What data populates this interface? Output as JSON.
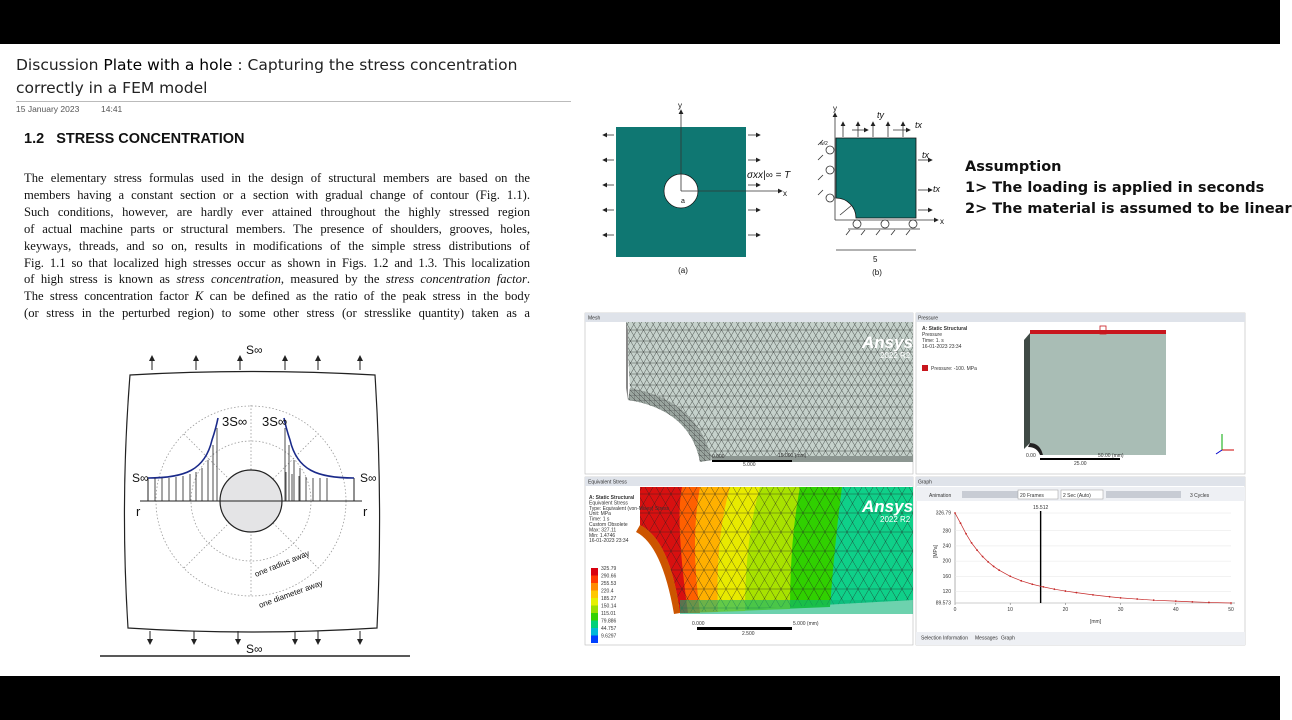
{
  "header": {
    "title_prefix": "Discussion",
    "title_bold": "Plate with a hole",
    "title_rest": ": Capturing the stress concentration",
    "title_line2": "correctly in a FEM model",
    "date": "15 January 2023",
    "time": "14:41"
  },
  "section": {
    "heading": "1.2   STRESS CONCENTRATION",
    "lines": [
      [
        "The elementary stress formulas used in the design of structural members are based on the"
      ],
      [
        "members having a constant section or a section with gradual change of contour (Fig. 1.1)."
      ],
      [
        "Such conditions, however, are hardly ever attained throughout the highly stressed region"
      ],
      [
        "of actual machine parts or structural members. The presence of shoulders, grooves, holes,"
      ],
      [
        "keyways, threads, and so on, results in modifications of the simple stress distributions of"
      ],
      [
        "Fig. 1.1 so that localized high stresses occur as shown in Figs. 1.2 and 1.3. This localization"
      ],
      [
        "of high stress is known as ",
        "stress concentration",
        ", measured by the ",
        "stress concentration factor",
        "."
      ],
      [
        "The stress concentration factor ",
        "K",
        " can be defined as the ratio of the peak stress in the body"
      ],
      [
        "(or stress in the perturbed region) to some other stress (or stresslike quantity) taken as a"
      ]
    ]
  },
  "figure_left": {
    "top": "S∞",
    "bottom": "S∞",
    "left": "S∞",
    "right": "S∞",
    "peak_left": "3S∞",
    "peak_right": "3S∞",
    "r_left": "r",
    "r_right": "r",
    "radius": "one radius away",
    "diameter": "one diameter away"
  },
  "figure_right": {
    "label_a": "(a)",
    "label_b": "(b)",
    "y_a": "y",
    "x_a": "x",
    "a": "a",
    "load": "σxx|∞ = T",
    "y_b": "y",
    "x_b": "x",
    "ty": "ty",
    "tx1": "tx",
    "tx2": "tx",
    "tx3": "tx",
    "width": "5",
    "wh": "w/2"
  },
  "assumption": {
    "title": "Assumption",
    "items": [
      "1> The loading is applied in seconds",
      "2> The material is assumed to be linear"
    ]
  },
  "mesh": {
    "tab": "Mesh",
    "brand": "Ansys",
    "version": "2022 R2",
    "scale": [
      "0.000",
      "5.000",
      "10.000 (mm)"
    ]
  },
  "pressure": {
    "tab": "Pressure",
    "info": [
      "A: Static Structural",
      "Pressure",
      "Time: 1. s",
      "16-01-2023 23:34"
    ],
    "legend": "Pressure: -100. MPa",
    "scale": [
      "0.00",
      "50.00 (mm)",
      "25.00"
    ]
  },
  "stress": {
    "tab": "Equivalent Stress",
    "brand": "Ansys",
    "version": "2022 R2",
    "info": [
      "A: Static Structural",
      "Equivalent Stress",
      "Type: Equivalent (von-Mises) Stress",
      "Unit: MPa",
      "Time: 1 s",
      "Custom Obsolete",
      "Max: 327.11",
      "Min: 1.4746",
      "16-01-2023 23:34"
    ],
    "legend": [
      "325.79",
      "290.66",
      "255.53",
      "220.4",
      "185.27",
      "150.14",
      "115.01",
      "79.886",
      "44.757",
      "9.6297"
    ],
    "legend_colors": [
      "#d8000e",
      "#ff3a00",
      "#ff8a00",
      "#ffc800",
      "#e6f000",
      "#9be000",
      "#35d200",
      "#00d07a",
      "#00b8d8",
      "#0040ff"
    ],
    "scale": [
      "0.000",
      "5.000 (mm)",
      "2.500"
    ]
  },
  "graph": {
    "tab": "Graph",
    "animation": "Animation",
    "frames": "20 Frames",
    "duration": "2 Sec (Auto)",
    "cycles": "3 Cycles",
    "marker": "15.512",
    "y_label": "[MPa]",
    "x_label": "[mm]",
    "xlim": [
      0,
      50
    ],
    "ylim": [
      89.573,
      326.79
    ],
    "xticks": [
      0,
      10,
      20,
      30,
      40,
      50
    ],
    "yticks": [
      326.79,
      280,
      240,
      200,
      160,
      120,
      89.573
    ],
    "cursor": 15.512,
    "x": [
      0,
      1,
      2,
      3,
      4,
      5,
      6,
      7,
      8,
      10,
      12,
      14,
      16,
      18,
      20,
      22,
      25,
      28,
      30,
      33,
      36,
      40,
      43,
      46,
      50
    ],
    "y": [
      326.79,
      300,
      272,
      248,
      229,
      212,
      198,
      186,
      176,
      160,
      148,
      139,
      132,
      126,
      121,
      117,
      111,
      106,
      103,
      100,
      97,
      94.5,
      92.5,
      91,
      89.573
    ],
    "tabs": [
      "Selection Information",
      "Messages",
      "Graph"
    ]
  }
}
